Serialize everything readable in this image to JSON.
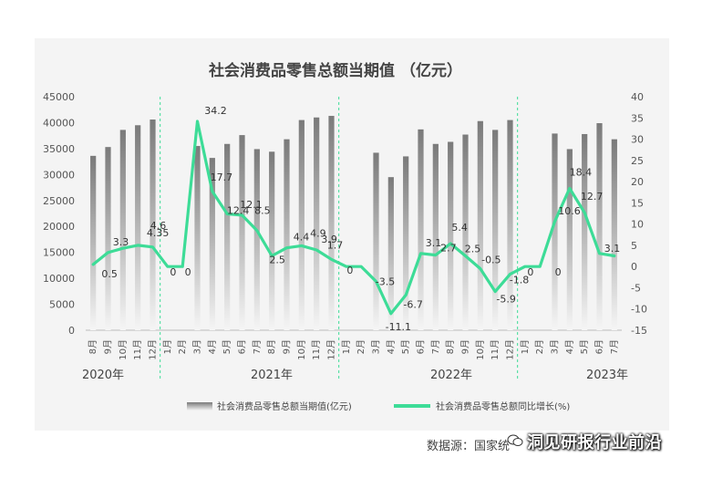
{
  "chart_data": {
    "type": "bar+line",
    "title": "社会消费品零售总额当期值 （亿元）",
    "categories": [
      "8月",
      "9月",
      "10月",
      "11月",
      "12月",
      "1月",
      "2月",
      "3月",
      "4月",
      "5月",
      "6月",
      "7月",
      "8月",
      "9月",
      "10月",
      "11月",
      "12月",
      "1月",
      "2月",
      "3月",
      "4月",
      "5月",
      "6月",
      "7月",
      "8月",
      "9月",
      "10月",
      "11月",
      "12月",
      "1月",
      "2月",
      "3月",
      "4月",
      "5月",
      "6月",
      "7月"
    ],
    "year_labels": [
      "2020年",
      "2021年",
      "2022年",
      "2023年"
    ],
    "y_left": {
      "min": 0,
      "max": 45000,
      "step": 5000,
      "ticks": [
        "0",
        "5000",
        "10000",
        "15000",
        "20000",
        "25000",
        "30000",
        "35000",
        "40000",
        "45000"
      ]
    },
    "y_right": {
      "min": -15,
      "max": 40,
      "step": 5,
      "ticks": [
        "-15",
        "-10",
        "-5",
        "0",
        "5",
        "10",
        "15",
        "20",
        "25",
        "30",
        "35",
        "40"
      ]
    },
    "series": [
      {
        "name": "社会消费品零售总额当期值(亿元)",
        "kind": "bar",
        "axis": "left",
        "values": [
          33600,
          35300,
          38600,
          39500,
          40600,
          null,
          null,
          35500,
          33200,
          35900,
          37600,
          34900,
          34400,
          36800,
          40500,
          41000,
          41300,
          null,
          null,
          34200,
          29500,
          33500,
          38700,
          35900,
          36300,
          37700,
          40300,
          38600,
          40500,
          null,
          null,
          37900,
          34900,
          37800,
          39900,
          36800
        ]
      },
      {
        "name": "社会消费品零售总额同比增长(%)",
        "kind": "line",
        "axis": "right",
        "values": [
          0.5,
          3.3,
          4.3,
          5.0,
          4.6,
          0,
          0,
          34.2,
          17.7,
          12.4,
          12.1,
          8.5,
          2.5,
          4.4,
          4.9,
          3.9,
          1.7,
          0,
          0,
          -3.5,
          -11.1,
          -6.7,
          3.1,
          2.7,
          5.4,
          2.5,
          -0.5,
          -5.9,
          -1.8,
          0,
          0,
          10.6,
          18.4,
          12.7,
          3.1,
          2.5
        ]
      }
    ],
    "line_label_texts": [
      "0.5",
      "3.3",
      "4.35",
      "4.6",
      "0",
      "0",
      "34.2",
      "17.7",
      "12.4",
      "12.1",
      "8.5",
      "2.5",
      "4.4",
      "4.9",
      "3.9",
      "1.7",
      "0",
      "-3.5",
      "-11.1",
      "-6.7",
      "3.1",
      "2.7",
      "5.4",
      "2.5",
      "-0.5",
      "-5.9",
      "-1.8",
      "0",
      "0",
      "10.6",
      "18.4",
      "12.7",
      "3.1"
    ],
    "colors": {
      "bar_top": "#7f7f7f",
      "bar_bottom": "#f2f2f2",
      "line": "#3ddc97",
      "divider": "#3ddc97",
      "plot_bg": "#f4f4f4"
    },
    "legend": {
      "placement": "bottom"
    },
    "grid": false
  },
  "source": "数据源：国家统",
  "watermark": "洞见研报行业前沿"
}
